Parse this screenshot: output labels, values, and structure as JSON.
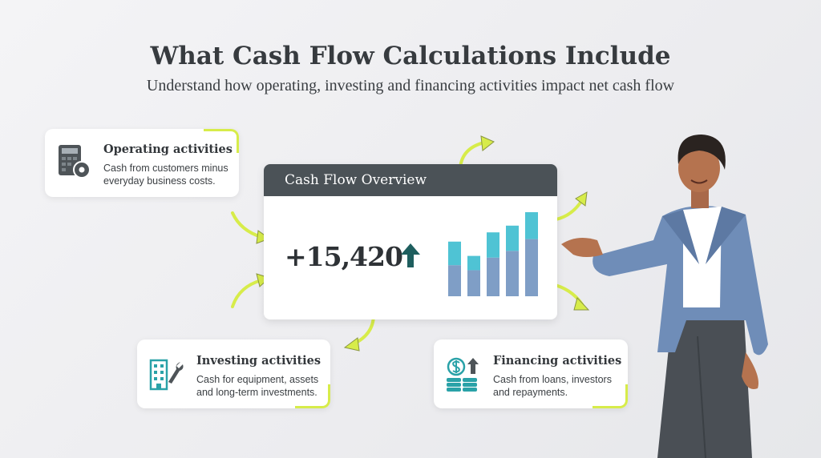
{
  "header": {
    "title": "What Cash Flow Calculations Include",
    "subtitle": "Understand how operating, investing and financing activities impact net cash flow"
  },
  "cards": [
    {
      "title": "Operating activities",
      "text_lines": [
        "Cash from customers minus",
        "everyday business costs."
      ],
      "icon": "calculator-gear-icon"
    },
    {
      "title": "Investing activities",
      "text_lines": [
        "Cash for equipment, assets",
        "and long-term investments."
      ],
      "icon": "building-wrench-icon"
    },
    {
      "title": "Financing activities",
      "text_lines": [
        "Cash from loans, investors",
        "and repayments."
      ],
      "icon": "coins-dollar-icon"
    }
  ],
  "overview": {
    "title": "Cash Flow Overview",
    "value": "+15,420",
    "trend_icon": "arrow-up-icon",
    "bars": [
      {
        "base": 37,
        "top": 28
      },
      {
        "base": 31,
        "top": 17
      },
      {
        "base": 46,
        "top": 30
      },
      {
        "base": 54,
        "top": 30
      },
      {
        "base": 68,
        "top": 32
      }
    ]
  },
  "colors": {
    "accent": "#d7ec4a",
    "bar_base": "#7f9ec6",
    "bar_top": "#4fc3d4",
    "header": "#4b5257",
    "arrow_up": "#1e5e5e"
  }
}
